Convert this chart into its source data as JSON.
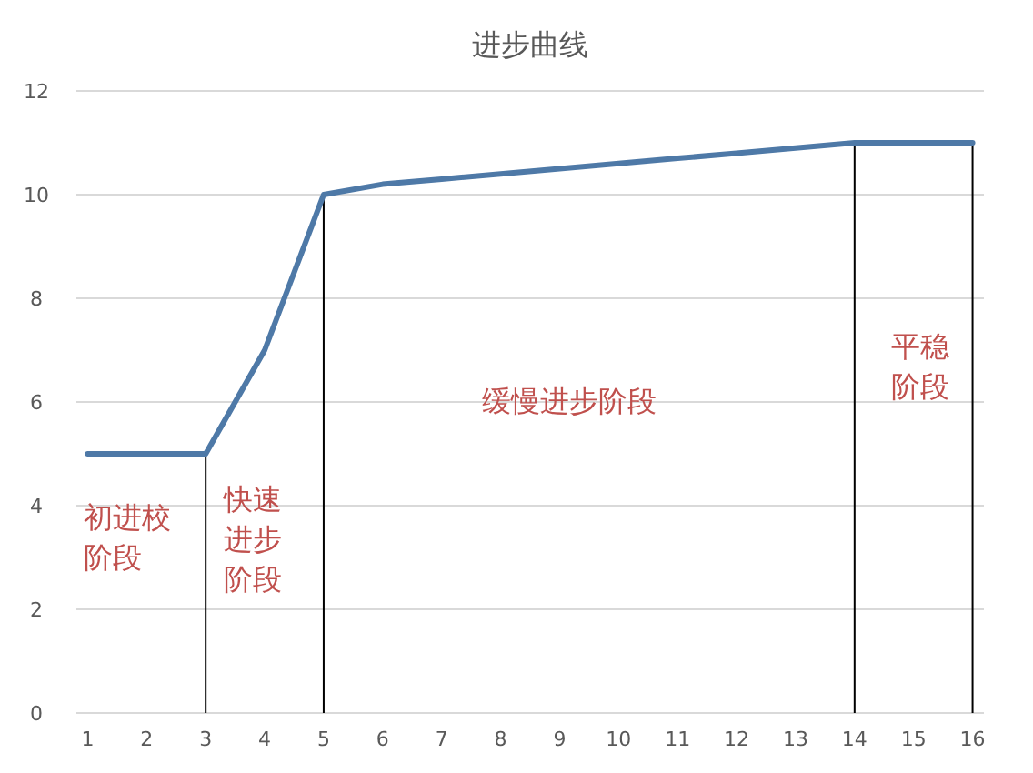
{
  "chart_data": {
    "type": "line",
    "title": "进步曲线",
    "categories": [
      "1",
      "2",
      "3",
      "4",
      "5",
      "6",
      "7",
      "8",
      "9",
      "10",
      "11",
      "12",
      "13",
      "14",
      "15",
      "16"
    ],
    "series": [
      {
        "color": "#4e79a7",
        "values": [
          5,
          5,
          5,
          7,
          10,
          10.2,
          10.3,
          10.4,
          10.5,
          10.6,
          10.7,
          10.8,
          10.9,
          11,
          11,
          11
        ]
      }
    ],
    "ylim": [
      0,
      12
    ],
    "yticks": [
      0,
      2,
      4,
      6,
      8,
      10,
      12
    ],
    "grid": "y",
    "marker": "none",
    "line_style": "solid",
    "ref_lines": [
      {
        "axis": "x",
        "value": "3",
        "color": "#000000"
      },
      {
        "axis": "x",
        "value": "5",
        "color": "#000000"
      },
      {
        "axis": "x",
        "value": "14",
        "color": "#000000"
      },
      {
        "axis": "x",
        "value": "16",
        "color": "#000000"
      }
    ],
    "annotations": [
      "初进校阶段",
      "快速进步阶段",
      "缓慢进步阶段",
      "平稳阶段"
    ]
  }
}
